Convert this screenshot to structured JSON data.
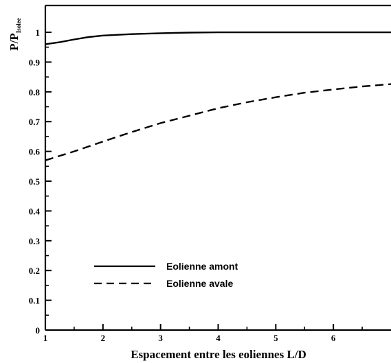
{
  "chart_data": {
    "type": "line",
    "xlabel": "Espacement entre les eoliennes  L/D",
    "ylabel_main": "P/P",
    "ylabel_sub": "Isolee",
    "xlim": [
      1,
      7
    ],
    "ylim": [
      0,
      1.09
    ],
    "x_ticks": [
      1,
      2,
      3,
      4,
      5,
      6
    ],
    "x_tick_labels": [
      "1",
      "2",
      "3",
      "4",
      "5",
      "6"
    ],
    "y_ticks": [
      0,
      0.1,
      0.2,
      0.3,
      0.4,
      0.5,
      0.6,
      0.7,
      0.8,
      0.9,
      1
    ],
    "y_tick_labels": [
      "0",
      "0.1",
      "0.2",
      "0.3",
      "0.4",
      "0.5",
      "0.6",
      "0.7",
      "0.8",
      "0.9",
      "1"
    ],
    "grid": false,
    "legend_position": "lower-left",
    "series": [
      {
        "name": "Eolienne amont",
        "style": "solid",
        "color": "#000000",
        "x": [
          1,
          1.25,
          1.5,
          1.75,
          2,
          2.5,
          3,
          3.5,
          4,
          5,
          6,
          7
        ],
        "y": [
          0.96,
          0.967,
          0.976,
          0.984,
          0.989,
          0.994,
          0.997,
          0.999,
          1.0,
          1.0,
          1.0,
          1.0
        ]
      },
      {
        "name": "Eolienne avale",
        "style": "dashed",
        "color": "#000000",
        "x": [
          1,
          1.5,
          2,
          2.5,
          3,
          3.5,
          4,
          4.5,
          5,
          5.5,
          6,
          6.5,
          7
        ],
        "y": [
          0.57,
          0.6,
          0.633,
          0.665,
          0.695,
          0.72,
          0.745,
          0.765,
          0.782,
          0.797,
          0.808,
          0.818,
          0.826
        ]
      }
    ]
  }
}
